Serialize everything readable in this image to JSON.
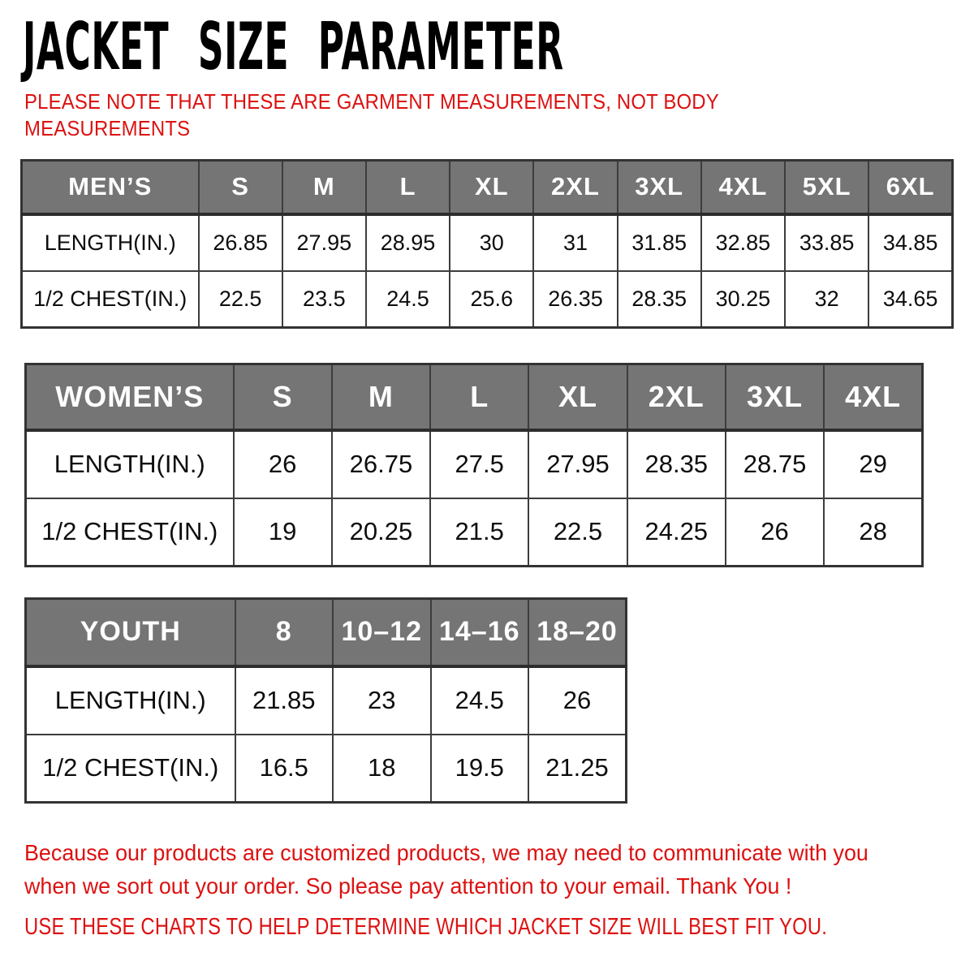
{
  "header": {
    "title": "JACKET SIZE PARAMETER",
    "note_lines": [
      "PLEASE NOTE THAT THESE ARE GARMENT MEASUREMENTS, NOT BODY",
      "MEASUREMENTS"
    ]
  },
  "colors": {
    "accent_red": "#dd1111",
    "header_gray": "#757575",
    "table_border": "#3d3d3d"
  },
  "tables": [
    {
      "id": "men",
      "header": [
        "MEN’S",
        "S",
        "M",
        "L",
        "XL",
        "2XL",
        "3XL",
        "4XL",
        "5XL",
        "6XL"
      ],
      "rows": [
        {
          "label": "LENGTH(IN.)",
          "values": [
            "26.85",
            "27.95",
            "28.95",
            "30",
            "31",
            "31.85",
            "32.85",
            "33.85",
            "34.85"
          ]
        },
        {
          "label": "1/2 CHEST(IN.)",
          "values": [
            "22.5",
            "23.5",
            "24.5",
            "25.6",
            "26.35",
            "28.35",
            "30.25",
            "32",
            "34.65"
          ]
        }
      ]
    },
    {
      "id": "women",
      "header": [
        "WOMEN’S",
        "S",
        "M",
        "L",
        "XL",
        "2XL",
        "3XL",
        "4XL"
      ],
      "rows": [
        {
          "label": "LENGTH(IN.)",
          "values": [
            "26",
            "26.75",
            "27.5",
            "27.95",
            "28.35",
            "28.75",
            "29"
          ]
        },
        {
          "label": "1/2 CHEST(IN.)",
          "values": [
            "19",
            "20.25",
            "21.5",
            "22.5",
            "24.25",
            "26",
            "28"
          ]
        }
      ]
    },
    {
      "id": "youth",
      "header": [
        "YOUTH",
        "8",
        "10–12",
        "14–16",
        "18–20"
      ],
      "rows": [
        {
          "label": "LENGTH(IN.)",
          "values": [
            "21.85",
            "23",
            "24.5",
            "26"
          ]
        },
        {
          "label": "1/2 CHEST(IN.)",
          "values": [
            "16.5",
            "18",
            "19.5",
            "21.25"
          ]
        }
      ]
    }
  ],
  "footer": {
    "lines": [
      "Because our products are customized products, we may need to communicate with you",
      "when we sort out your order. So please pay attention to your email. Thank You !"
    ],
    "cta": "USE THESE CHARTS TO HELP DETERMINE WHICH JACKET SIZE WILL BEST FIT YOU."
  }
}
